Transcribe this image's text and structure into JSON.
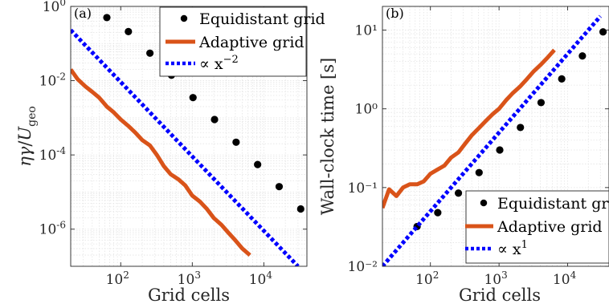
{
  "chart_data": [
    {
      "type": "scatter",
      "panel_label": "(a)",
      "xlabel": "Grid cells",
      "ylabel": "ηγ/U_geo",
      "xscale": "log",
      "yscale": "log",
      "xlim": [
        20,
        40000
      ],
      "ylim": [
        1e-07,
        1
      ],
      "grid": true,
      "legend_position": "top-right",
      "x_ticks": [
        {
          "value": 100,
          "base": "10",
          "exp": "2"
        },
        {
          "value": 1000,
          "base": "10",
          "exp": "3"
        },
        {
          "value": 10000,
          "base": "10",
          "exp": "4"
        }
      ],
      "y_ticks": [
        {
          "value": 1,
          "base": "10",
          "exp": "0"
        },
        {
          "value": 0.01,
          "base": "10",
          "exp": "-2"
        },
        {
          "value": 0.0001,
          "base": "10",
          "exp": "-4"
        },
        {
          "value": 1e-06,
          "base": "10",
          "exp": "-6"
        }
      ],
      "series": [
        {
          "name": "Equidistant grid",
          "style": "markers",
          "color": "#000000",
          "x": [
            64,
            128,
            256,
            512,
            1024,
            2048,
            4096,
            8192,
            16384,
            32768
          ],
          "y": [
            0.5,
            0.21,
            0.055,
            0.014,
            0.0035,
            0.0009,
            0.00022,
            5.5e-05,
            1.4e-05,
            3.5e-06
          ]
        },
        {
          "name": "Adaptive grid",
          "style": "line",
          "color": "#d95319",
          "x": [
            20,
            25,
            32,
            40,
            50,
            64,
            80,
            100,
            128,
            160,
            200,
            256,
            320,
            400,
            500,
            640,
            800,
            1000,
            1280,
            1600,
            2000,
            2560,
            3200,
            4000,
            5000,
            6400
          ],
          "y": [
            0.02,
            0.011,
            0.007,
            0.005,
            0.0035,
            0.002,
            0.0014,
            0.0009,
            0.0006,
            0.0004,
            0.00025,
            0.00018,
            0.0001,
            5e-05,
            3e-05,
            2.2e-05,
            1.5e-05,
            8e-06,
            5.5e-06,
            3.5e-06,
            2e-06,
            1.3e-06,
            8e-07,
            5e-07,
            3e-07,
            2e-07
          ]
        },
        {
          "name": "∝ x",
          "name_exponent": "−2",
          "style": "dotted-line",
          "color": "#0000ff",
          "x": [
            20,
            30000
          ],
          "y": [
            0.23,
            1e-07
          ]
        }
      ]
    },
    {
      "type": "scatter",
      "panel_label": "(b)",
      "xlabel": "Grid cells",
      "ylabel": "Wall-clock time [s]",
      "xscale": "log",
      "yscale": "log",
      "xlim": [
        20,
        40000
      ],
      "ylim": [
        0.01,
        20
      ],
      "grid": true,
      "legend_position": "bottom-right",
      "x_ticks": [
        {
          "value": 100,
          "base": "10",
          "exp": "2"
        },
        {
          "value": 1000,
          "base": "10",
          "exp": "3"
        },
        {
          "value": 10000,
          "base": "10",
          "exp": "4"
        }
      ],
      "y_ticks": [
        {
          "value": 10,
          "label": "10¹"
        },
        {
          "value": 1,
          "label": "10⁰"
        },
        {
          "value": 0.1,
          "label": "10⁻¹"
        },
        {
          "value": 0.01,
          "label": "10⁻²"
        }
      ],
      "series": [
        {
          "name": "Equidistant grid",
          "style": "markers",
          "color": "#000000",
          "x": [
            64,
            128,
            256,
            512,
            1024,
            2048,
            4096,
            8192,
            16384,
            32768
          ],
          "y": [
            0.032,
            0.048,
            0.085,
            0.155,
            0.3,
            0.58,
            1.2,
            2.4,
            4.7,
            9.5
          ]
        },
        {
          "name": "Adaptive grid",
          "style": "line",
          "color": "#d95319",
          "x": [
            20,
            25,
            32,
            40,
            50,
            64,
            80,
            100,
            128,
            160,
            200,
            256,
            320,
            400,
            500,
            640,
            800,
            1000,
            1280,
            1600,
            2000,
            2560,
            3200,
            4000,
            5000,
            6400
          ],
          "y": [
            0.055,
            0.095,
            0.078,
            0.1,
            0.11,
            0.11,
            0.12,
            0.15,
            0.17,
            0.19,
            0.24,
            0.28,
            0.36,
            0.46,
            0.56,
            0.7,
            0.85,
            1.0,
            1.3,
            1.6,
            1.9,
            2.4,
            3.0,
            3.6,
            4.4,
            5.6
          ]
        },
        {
          "name": "∝ x",
          "name_exponent": "1",
          "style": "dotted-line",
          "color": "#0000ff",
          "x": [
            20,
            30000
          ],
          "y": [
            0.01,
            15
          ]
        }
      ]
    }
  ]
}
